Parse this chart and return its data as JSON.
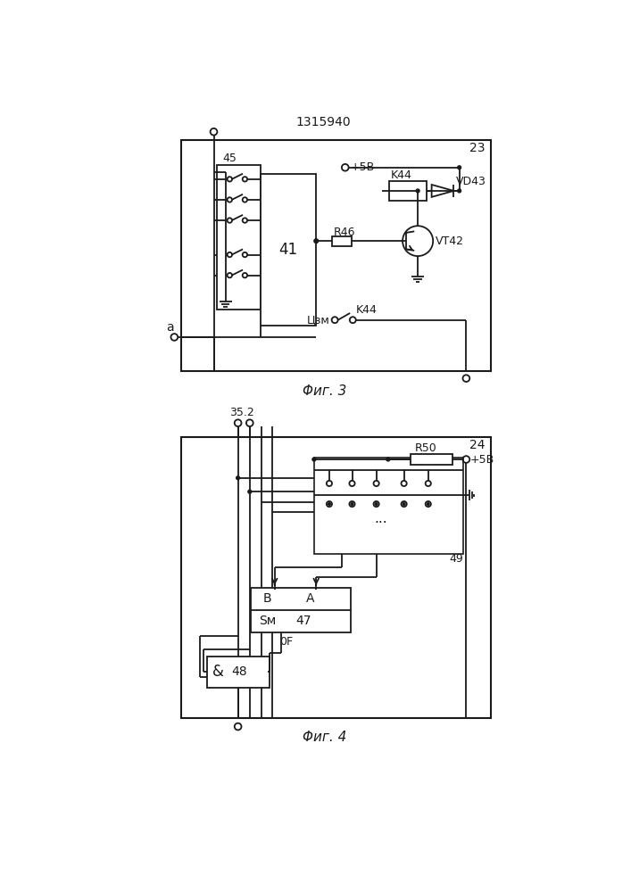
{
  "title": "1315940",
  "fig3_label": "23",
  "fig4_label": "24",
  "fig3_caption": "Φиг. 3",
  "fig4_caption": "Φиг. 4",
  "bg_color": "#ffffff",
  "line_color": "#1a1a1a",
  "label_45": "45",
  "label_41": "41",
  "label_R46": "R46",
  "label_VT42": "VT42",
  "label_VD43": "VD43",
  "label_K44_top": "K44",
  "label_K44_bot": "K44",
  "label_plus5V": "+5B",
  "label_Uzm": "Цзм",
  "label_a": "a",
  "label_35_2": "35.2",
  "label_R50": "R50",
  "label_plus5V_2": "+5B",
  "label_49": "49",
  "label_B": "B",
  "label_A": "A",
  "label_Sm": "Sм",
  "label_47": "47",
  "label_OF": "0F",
  "label_amp": "&",
  "label_48": "48"
}
